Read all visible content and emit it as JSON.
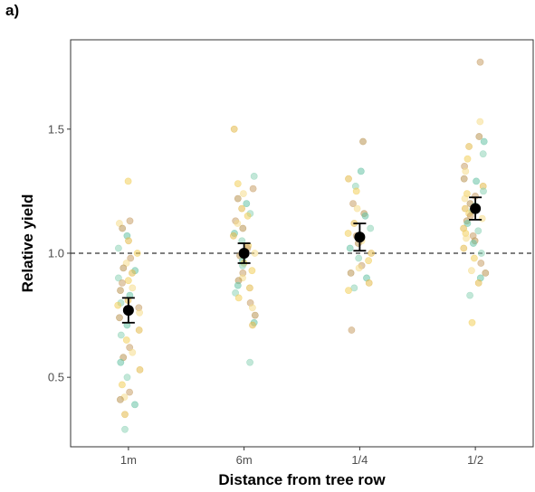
{
  "panel_label": "a)",
  "colors": {
    "mean": "#000000",
    "refline": "#333333",
    "panel_border": "#333333",
    "jitter_palette": [
      "#f2cf5b",
      "#e3b94a",
      "#b99554",
      "#c9a06a",
      "#8fd3b8",
      "#68c3a5",
      "#f5dd8c"
    ]
  },
  "chart_data": {
    "type": "scatter",
    "title": "",
    "xlabel": "Distance from tree row",
    "ylabel": "Relative yield",
    "categories": [
      "1m",
      "6m",
      "1/4",
      "1/2"
    ],
    "y_ticks": [
      0.5,
      1.0,
      1.5
    ],
    "y_tick_labels": [
      "0.5",
      "1.0",
      "1.5"
    ],
    "ylim": [
      0.22,
      1.86
    ],
    "reference_line": 1.0,
    "grid": false,
    "legend": "none",
    "means": [
      {
        "category": "1m",
        "mean": 0.77,
        "lower": 0.72,
        "upper": 0.82
      },
      {
        "category": "6m",
        "mean": 1.0,
        "lower": 0.96,
        "upper": 1.04
      },
      {
        "category": "1/4",
        "mean": 1.065,
        "lower": 1.01,
        "upper": 1.12
      },
      {
        "category": "1/2",
        "mean": 1.18,
        "lower": 1.135,
        "upper": 1.225
      }
    ],
    "points": [
      [
        1.29,
        1.13,
        1.12,
        1.1,
        1.07,
        1.05,
        1.02,
        1.0,
        0.98,
        0.96,
        0.94,
        0.93,
        0.92,
        0.9,
        0.89,
        0.88,
        0.86,
        0.85,
        0.83,
        0.81,
        0.8,
        0.79,
        0.78,
        0.76,
        0.74,
        0.71,
        0.69,
        0.67,
        0.65,
        0.62,
        0.6,
        0.58,
        0.56,
        0.53,
        0.5,
        0.47,
        0.44,
        0.42,
        0.41,
        0.39,
        0.35,
        0.29
      ],
      [
        1.5,
        1.31,
        1.28,
        1.26,
        1.24,
        1.22,
        1.2,
        1.18,
        1.16,
        1.15,
        1.13,
        1.12,
        1.1,
        1.08,
        1.07,
        1.05,
        1.03,
        1.02,
        1.0,
        0.99,
        0.97,
        0.96,
        0.95,
        0.93,
        0.92,
        0.9,
        0.89,
        0.87,
        0.86,
        0.84,
        0.82,
        0.8,
        0.78,
        0.75,
        0.72,
        0.71,
        0.56
      ],
      [
        1.45,
        1.33,
        1.3,
        1.27,
        1.25,
        1.2,
        1.18,
        1.16,
        1.15,
        1.12,
        1.1,
        1.08,
        1.07,
        1.05,
        1.04,
        1.02,
        1.0,
        0.98,
        0.97,
        0.95,
        0.94,
        0.92,
        0.9,
        0.88,
        0.86,
        0.85,
        0.69
      ],
      [
        1.77,
        1.53,
        1.47,
        1.45,
        1.43,
        1.4,
        1.38,
        1.35,
        1.33,
        1.3,
        1.29,
        1.27,
        1.25,
        1.24,
        1.23,
        1.22,
        1.2,
        1.19,
        1.18,
        1.17,
        1.16,
        1.15,
        1.14,
        1.13,
        1.12,
        1.1,
        1.09,
        1.08,
        1.07,
        1.06,
        1.05,
        1.04,
        1.02,
        1.0,
        0.98,
        0.96,
        0.93,
        0.92,
        0.9,
        0.88,
        0.83,
        0.72
      ]
    ]
  }
}
